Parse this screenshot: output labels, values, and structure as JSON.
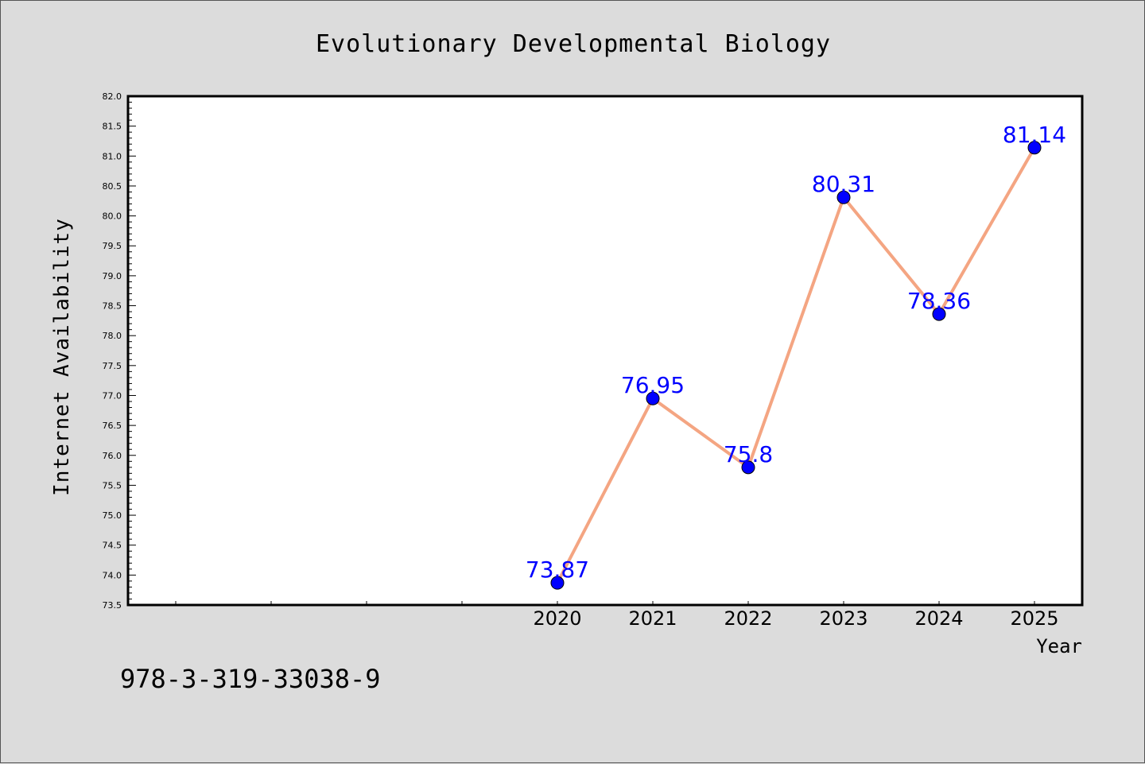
{
  "chart_data": {
    "type": "line",
    "title": "Evolutionary Developmental Biology",
    "xlabel": "Year",
    "ylabel": "Internet Availability",
    "x": [
      2020,
      2021,
      2022,
      2023,
      2024,
      2025
    ],
    "series": [
      {
        "values": [
          73.87,
          76.95,
          75.8,
          80.31,
          78.36,
          81.14
        ],
        "data_labels": [
          "73.87",
          "76.95",
          "75.8",
          "80.31",
          "78.36",
          "81.14"
        ]
      }
    ],
    "xlim": [
      2015.5,
      2025.5
    ],
    "ylim": [
      73.5,
      82.0
    ],
    "yticks": [
      "73.5",
      "74.0",
      "74.5",
      "75.0",
      "75.5",
      "76.0",
      "76.5",
      "77.0",
      "77.5",
      "78.0",
      "78.5",
      "79.0",
      "79.5",
      "80.0",
      "80.5",
      "81.0",
      "81.5",
      "82.0"
    ],
    "grid": false,
    "legend": "none",
    "colors": {
      "line": "#f4a582",
      "marker": "#0000ff",
      "label": "#0000ff",
      "background": "#dcdcdc",
      "plot_background": "#ffffff"
    }
  },
  "footnote": "978-3-319-33038-9"
}
